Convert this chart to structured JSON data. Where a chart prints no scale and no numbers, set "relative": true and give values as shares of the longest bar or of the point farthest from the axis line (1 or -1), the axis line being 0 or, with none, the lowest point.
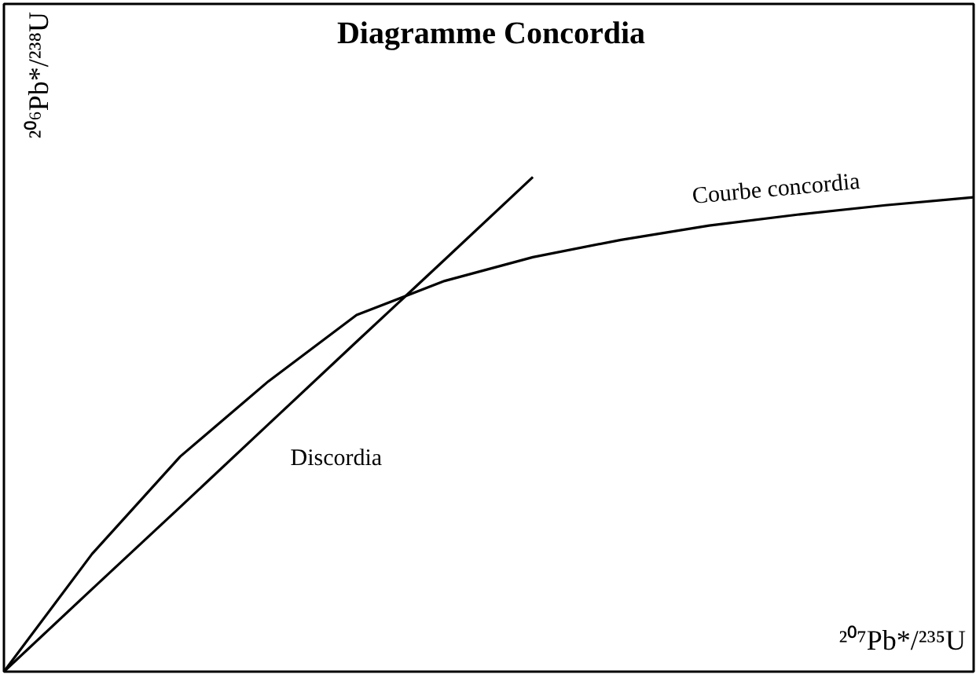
{
  "chart_data": {
    "type": "line",
    "title": "Diagramme Concordia",
    "xlabel": "²⁰⁷Pb*/²³⁵U",
    "ylabel": "²⁰⁶Pb*/²³⁸U",
    "relative": true,
    "grid": false,
    "marker": "none",
    "line_style": "solid",
    "categories": [
      null,
      null,
      null,
      null,
      null,
      null,
      null,
      null,
      null,
      null,
      null,
      null
    ],
    "series": [
      {
        "name": "Courbe concordia",
        "color": "#000000",
        "values": [
          0,
          0.238,
          0.435,
          0.587,
          0.721,
          0.79,
          0.838,
          0.873,
          0.902,
          0.924,
          0.943,
          0.959
        ]
      },
      {
        "name": "Discordia",
        "color": "#000000",
        "values": [
          0,
          0.167,
          0.333,
          0.5,
          0.667,
          0.833,
          1,
          null,
          null,
          null,
          null,
          null
        ]
      }
    ]
  }
}
